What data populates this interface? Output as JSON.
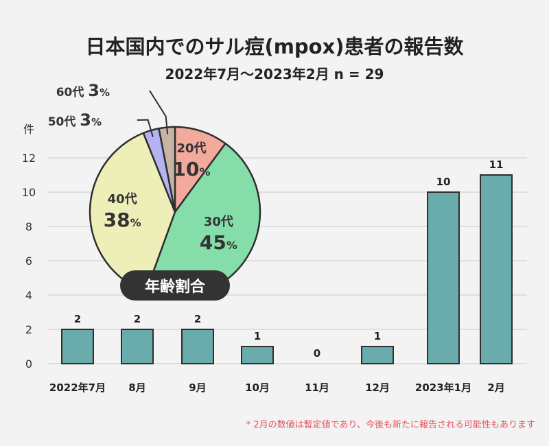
{
  "title": "日本国内でのサル痘(mpox)患者の報告数",
  "subtitle": "2022年7月〜2023年2月 n = 29",
  "footnote": "* 2月の数値は暫定値であり、今後も新たに報告される可能性もあります",
  "colors": {
    "bar": "#6aabab",
    "grid": "#c8c8c8",
    "footnote": "#e8505b"
  },
  "chart_data": [
    {
      "type": "bar",
      "categories": [
        "2022年7月",
        "8月",
        "9月",
        "10月",
        "11月",
        "12月",
        "2023年1月",
        "2月"
      ],
      "values": [
        2,
        2,
        2,
        1,
        0,
        1,
        10,
        11
      ],
      "ylabel": "件",
      "ylim": [
        0,
        12
      ],
      "yticks": [
        0,
        2,
        4,
        6,
        8,
        10,
        12
      ],
      "grid": true
    },
    {
      "type": "pie",
      "title": "年齢割合",
      "slices": [
        {
          "label": "20代",
          "value": 10,
          "display": "10",
          "color": "#f2aa9d"
        },
        {
          "label": "30代",
          "value": 45,
          "display": "45",
          "color": "#85ddaa"
        },
        {
          "label": "40代",
          "value": 38,
          "display": "38",
          "color": "#eeeeb8"
        },
        {
          "label": "50代",
          "value": 3,
          "display": "3",
          "color": "#b3b3f4"
        },
        {
          "label": "60代",
          "value": 3,
          "display": "3",
          "color": "#c8b4a4"
        }
      ],
      "unit": "%"
    }
  ]
}
